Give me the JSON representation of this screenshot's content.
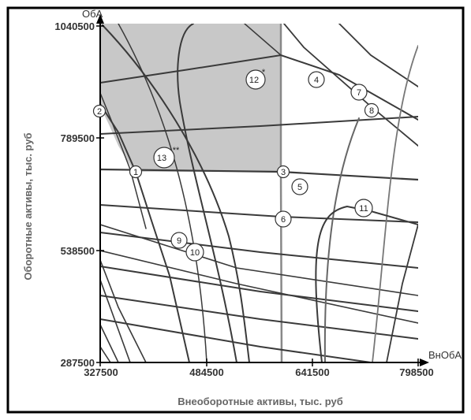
{
  "axes": {
    "y_name": "ОбА",
    "x_name": "ВнОбА",
    "y_title": "Оборотные активы, тыс. руб",
    "x_title": "Внеоборотные активы, тыс. руб",
    "x_ticks": [
      "327500",
      "484500",
      "641500",
      "798500"
    ],
    "y_ticks": [
      "1040500",
      "789500",
      "538500",
      "287500"
    ],
    "x_range": [
      327500,
      798500
    ],
    "y_range": [
      287500,
      1040500
    ]
  },
  "markers": [
    "1",
    "2",
    "3",
    "4",
    "5",
    "6",
    "7",
    "8",
    "9",
    "10",
    "11"
  ],
  "regions": {
    "r12": {
      "num": "12",
      "sup": "*"
    },
    "r13": {
      "num": "13",
      "sup": "**"
    }
  },
  "colors": {
    "shade": "#c8c8c8",
    "line": "#3a3a3a",
    "frame": "#000000"
  }
}
